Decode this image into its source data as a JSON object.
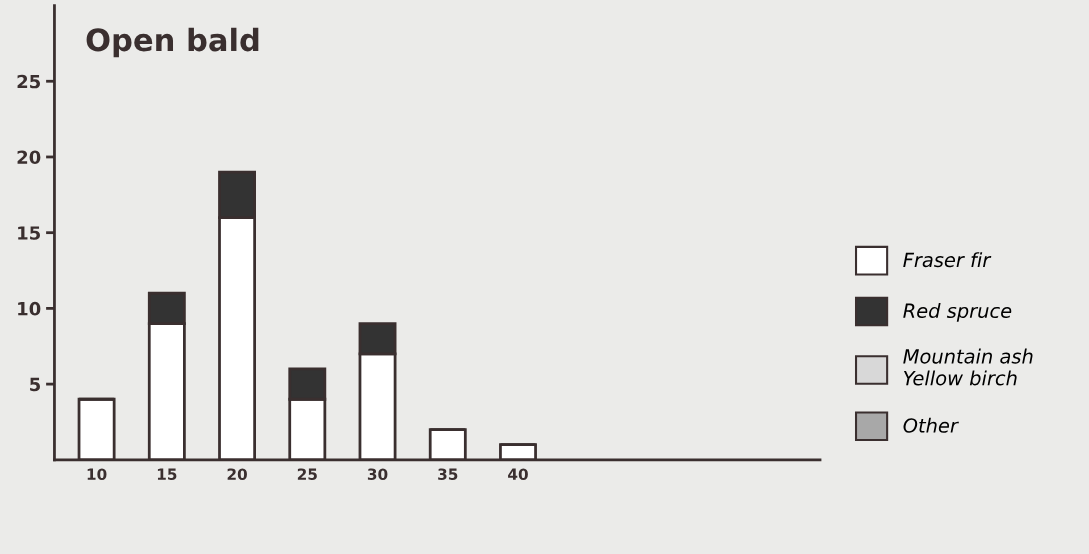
{
  "chart_data": {
    "type": "bar",
    "title": "Open bald",
    "stacked": true,
    "categories": [
      "10",
      "15",
      "20",
      "25",
      "30",
      "35",
      "40"
    ],
    "series": [
      {
        "name": "Fraser fir",
        "color": "#ffffff",
        "values": [
          4,
          9,
          16,
          4,
          7,
          2,
          1
        ]
      },
      {
        "name": "Red spruce",
        "color": "#333333",
        "values": [
          0,
          2,
          3,
          2,
          2,
          0,
          0
        ]
      },
      {
        "name": "Mountain ash\nYellow birch",
        "color": "#d8d8d8",
        "values": [
          null,
          null,
          null,
          null,
          null,
          null,
          null
        ]
      },
      {
        "name": "Other",
        "color": "#a8a8a8",
        "values": [
          null,
          null,
          null,
          null,
          null,
          null,
          null
        ]
      }
    ],
    "ylim": [
      0,
      30
    ],
    "yticks": [
      5,
      10,
      15,
      20,
      25
    ],
    "grid": false,
    "legend": "right"
  }
}
